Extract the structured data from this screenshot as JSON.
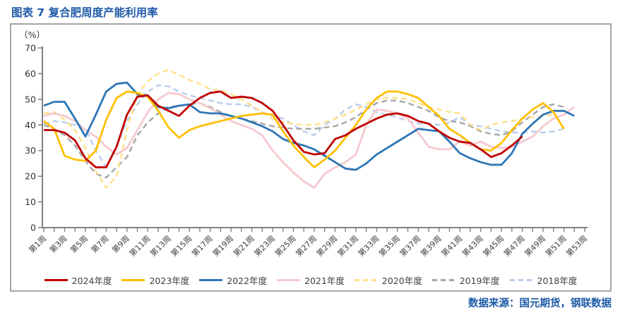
{
  "title": "图表 7 复合肥周度产能利用率",
  "footer": "数据来源：国元期货，钢联数据",
  "theme": {
    "title_color": "#1F5AA8",
    "footer_color": "#1D5BA6",
    "axis_color": "#808080",
    "tick_label_color": "#404040",
    "y_label_color": "#333333",
    "frame_border_color": "#A6A6A6"
  },
  "chart_data": {
    "type": "line",
    "title": "复合肥周度产能利用率",
    "unit_label": "（%）",
    "xlabel": "",
    "ylabel": "",
    "ylim": [
      0,
      70
    ],
    "y_ticks": [
      0,
      10,
      20,
      30,
      40,
      50,
      60,
      70
    ],
    "weeks": 53,
    "grid": false,
    "legend_position": "bottom",
    "x_tick_labels": [
      "第1周",
      "第3周",
      "第5周",
      "第7周",
      "第9周",
      "第11周",
      "第13周",
      "第15周",
      "第17周",
      "第19周",
      "第21周",
      "第23周",
      "第25周",
      "第27周",
      "第29周",
      "第31周",
      "第33周",
      "第35周",
      "第37周",
      "第39周",
      "第41周",
      "第43周",
      "第45周",
      "第47周",
      "第49周",
      "第51周",
      "第53周"
    ],
    "series": [
      {
        "name": "2024年度",
        "color": "#C00000",
        "dash": false,
        "values": [
          38,
          38,
          37,
          34,
          27,
          23.5,
          23.5,
          31.5,
          44,
          51,
          51.5,
          47.5,
          45.5,
          43.5,
          47.5,
          50.5,
          52.5,
          53,
          50.5,
          51,
          50.5,
          48.5,
          45.5,
          40,
          34,
          29.5,
          28.5,
          29,
          34.5,
          36,
          38.5,
          40.5,
          42.5,
          44,
          44.5,
          43.5,
          41.5,
          40.5,
          37.5,
          35,
          33.5,
          33,
          30.5,
          27.5,
          29,
          32,
          35.5,
          null,
          null,
          null,
          null,
          null,
          null
        ]
      },
      {
        "name": "2023年度",
        "color": "#FFC000",
        "dash": false,
        "values": [
          41.5,
          38.5,
          28,
          26.5,
          26,
          30,
          42,
          50.5,
          53,
          52.5,
          51,
          45.5,
          39,
          35,
          38,
          39.5,
          40.5,
          41.5,
          42.5,
          43.5,
          44,
          44.5,
          44,
          37.5,
          32,
          27.5,
          23.5,
          26.5,
          30,
          35,
          40,
          46,
          50.5,
          53,
          53,
          52,
          50.5,
          47,
          43.5,
          38.5,
          36,
          33,
          30.5,
          30,
          33,
          38,
          42.5,
          46,
          48.5,
          45,
          38.5,
          null,
          null
        ]
      },
      {
        "name": "2022年度",
        "color": "#2E75B6",
        "dash": false,
        "values": [
          47.5,
          49,
          49,
          42.5,
          35.5,
          44,
          53,
          56,
          56.5,
          52,
          51.5,
          47,
          46.5,
          47.5,
          48,
          45,
          44.5,
          44.5,
          43.5,
          42.5,
          41,
          39.5,
          37.5,
          34.5,
          33,
          32,
          30.5,
          28,
          25.5,
          23,
          22.5,
          25,
          28.5,
          31,
          33.5,
          36,
          38.5,
          38,
          37.5,
          33.5,
          29,
          27,
          25.5,
          24.5,
          24.5,
          29,
          36.5,
          40.5,
          44,
          45.5,
          45.5,
          43.5,
          null
        ]
      },
      {
        "name": "2021年度",
        "color": "#F6C9CE",
        "dash": false,
        "values": [
          43.5,
          44.5,
          43.5,
          41.5,
          38,
          35.5,
          31.5,
          28.5,
          31,
          38,
          45,
          50,
          52.5,
          52,
          50,
          48.5,
          46.5,
          44,
          41.5,
          40,
          38.5,
          36,
          30,
          25.5,
          21.5,
          18,
          15.5,
          21,
          23.5,
          25.5,
          28.5,
          40,
          46,
          45.5,
          44.5,
          42.5,
          37,
          31.5,
          30.5,
          30.5,
          33.5,
          32,
          33.5,
          31.5,
          31,
          31.5,
          33.5,
          35.5,
          39.5,
          42.5,
          44,
          47,
          null
        ]
      },
      {
        "name": "2020年度",
        "color": "#FFE089",
        "dash": true,
        "values": [
          44.5,
          45,
          42,
          38,
          31,
          22,
          15.5,
          20,
          38,
          52,
          57,
          60,
          61.5,
          59.5,
          57.5,
          56,
          54,
          53.5,
          52,
          50,
          47.5,
          45,
          42.5,
          41,
          40.5,
          40,
          40,
          41,
          42.5,
          44,
          46,
          48,
          50,
          50.5,
          50.5,
          50,
          48.5,
          47,
          46,
          45,
          44.5,
          40,
          38,
          40,
          41,
          41.5,
          42.5,
          43,
          43.5,
          44,
          null,
          null,
          null
        ]
      },
      {
        "name": "2019年度",
        "color": "#A6A6A6",
        "dash": true,
        "values": [
          40,
          38.5,
          36,
          32,
          26,
          21,
          19.5,
          23.5,
          27.5,
          36,
          41,
          44.5,
          47,
          47.5,
          48,
          48.5,
          47,
          45,
          43.5,
          42.5,
          41.5,
          40.5,
          39.5,
          39,
          38.5,
          38.5,
          38.5,
          39,
          39.5,
          41,
          43,
          46,
          48.5,
          49.5,
          49.5,
          48.5,
          47,
          45.5,
          43,
          41.5,
          41,
          39.5,
          37.5,
          36.5,
          36,
          37.5,
          41,
          44,
          47,
          48,
          47,
          null,
          null
        ]
      },
      {
        "name": "2018年度",
        "color": "#B9CDEC",
        "dash": true,
        "values": [
          40.5,
          41.5,
          41,
          40,
          38.5,
          30,
          23.5,
          32,
          41.5,
          48,
          53,
          55.5,
          55,
          53,
          51.5,
          50.5,
          49.5,
          48.5,
          48,
          48,
          47,
          45,
          43.5,
          42.5,
          40,
          37.5,
          36,
          40,
          42.5,
          46,
          48,
          47,
          45,
          44,
          43,
          41.5,
          40.5,
          40.5,
          40,
          41,
          43,
          40,
          39.5,
          38.5,
          37.5,
          37,
          37,
          37.5,
          37,
          37.5,
          38.5,
          null,
          null
        ]
      }
    ]
  }
}
